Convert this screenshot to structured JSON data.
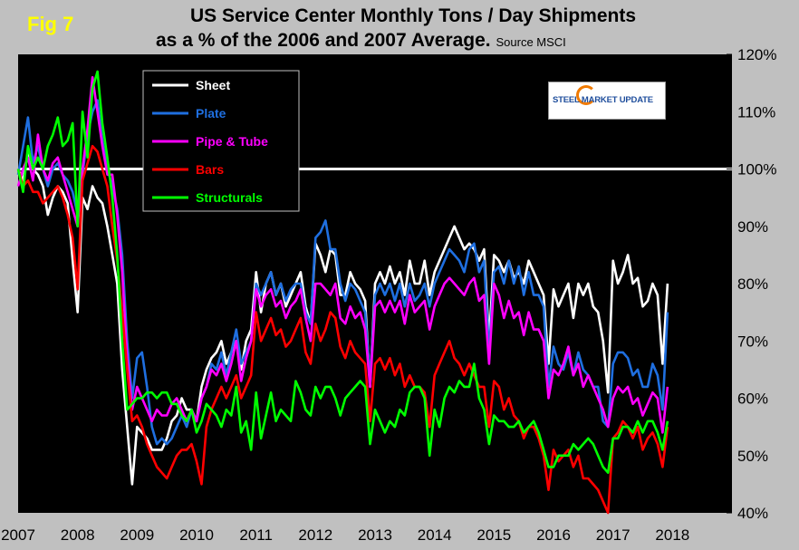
{
  "fig_label": "Fig 7",
  "title_line1": "US Service Center Monthly Tons / Day Shipments",
  "title_line2": "as a % of the 2006 and 2007 Average.",
  "source": "Source MSCI",
  "logo_text": "STEEL MARKET UPDATE",
  "colors": {
    "background": "#c0c0c0",
    "plot_bg": "#000000",
    "axis_text": "#000000",
    "reference_line": "#ffffff"
  },
  "chart_data": {
    "type": "line",
    "title": "US Service Center Monthly Tons / Day Shipments as a % of the 2006 and 2007 Average.",
    "xlabel": "",
    "ylabel": "",
    "x_start": 2007.0,
    "x_step": 0.0833333,
    "xlim": [
      2007,
      2019
    ],
    "ylim": [
      40,
      120
    ],
    "x_ticks": [
      "2007",
      "2008",
      "2009",
      "2010",
      "2011",
      "2012",
      "2013",
      "2014",
      "2015",
      "2016",
      "2017",
      "2018"
    ],
    "y_ticks": [
      "40%",
      "50%",
      "60%",
      "70%",
      "80%",
      "90%",
      "100%",
      "110%",
      "120%"
    ],
    "reference_line": 100,
    "grid": false,
    "legend_position": "top-left",
    "series": [
      {
        "name": "Sheet",
        "color": "#ffffff",
        "values": [
          100,
          98,
          103,
          100,
          99,
          97,
          92,
          95,
          97,
          96,
          94,
          84,
          75,
          95,
          93,
          97,
          95,
          94,
          90,
          85,
          80,
          65,
          55,
          45,
          55,
          54,
          53,
          51,
          51,
          51,
          53,
          56,
          57,
          60,
          58,
          58,
          56,
          62,
          65,
          67,
          68,
          70,
          66,
          68,
          70,
          65,
          70,
          72,
          82,
          75,
          80,
          82,
          78,
          80,
          76,
          78,
          80,
          82,
          76,
          73,
          87,
          85,
          82,
          86,
          85,
          78,
          78,
          82,
          80,
          79,
          77,
          62,
          80,
          82,
          80,
          83,
          80,
          82,
          78,
          84,
          80,
          80,
          84,
          78,
          82,
          84,
          86,
          88,
          90,
          88,
          86,
          87,
          86,
          84,
          86,
          70,
          85,
          84,
          82,
          84,
          81,
          82,
          80,
          84,
          82,
          80,
          78,
          66,
          79,
          76,
          78,
          80,
          74,
          80,
          78,
          80,
          76,
          75,
          70,
          61,
          84,
          80,
          82,
          85,
          80,
          81,
          76,
          77,
          80,
          78,
          66,
          80
        ]
      },
      {
        "name": "Plate",
        "color": "#1f6fe0",
        "values": [
          99,
          104,
          109,
          101,
          104,
          100,
          97,
          100,
          101,
          99,
          98,
          96,
          92,
          99,
          106,
          110,
          112,
          105,
          100,
          97,
          93,
          85,
          70,
          60,
          67,
          68,
          62,
          55,
          52,
          53,
          52,
          53,
          55,
          57,
          55,
          58,
          56,
          60,
          62,
          66,
          65,
          68,
          64,
          68,
          72,
          66,
          68,
          70,
          80,
          78,
          80,
          82,
          78,
          80,
          77,
          79,
          80,
          80,
          75,
          73,
          88,
          89,
          91,
          86,
          86,
          80,
          77,
          80,
          79,
          77,
          75,
          63,
          78,
          80,
          78,
          80,
          77,
          80,
          76,
          80,
          77,
          78,
          80,
          76,
          80,
          82,
          84,
          86,
          85,
          84,
          82,
          86,
          87,
          82,
          84,
          68,
          82,
          83,
          80,
          84,
          80,
          83,
          78,
          82,
          78,
          78,
          76,
          62,
          69,
          66,
          65,
          68,
          64,
          68,
          65,
          64,
          62,
          62,
          56,
          55,
          66,
          68,
          68,
          67,
          64,
          65,
          62,
          62,
          66,
          64,
          58,
          75
        ]
      },
      {
        "name": "Pipe & Tube",
        "color": "#ff00ff",
        "values": [
          97,
          100,
          102,
          98,
          106,
          100,
          98,
          101,
          102,
          99,
          96,
          93,
          90,
          100,
          107,
          116,
          110,
          104,
          99,
          99,
          92,
          82,
          67,
          58,
          62,
          60,
          58,
          56,
          58,
          57,
          57,
          59,
          60,
          58,
          56,
          58,
          56,
          60,
          62,
          65,
          64,
          66,
          63,
          66,
          70,
          63,
          67,
          70,
          79,
          76,
          78,
          79,
          76,
          77,
          74,
          76,
          77,
          79,
          74,
          70,
          80,
          80,
          79,
          78,
          80,
          74,
          73,
          76,
          74,
          75,
          72,
          62,
          76,
          77,
          75,
          77,
          75,
          77,
          73,
          78,
          75,
          76,
          77,
          72,
          76,
          78,
          80,
          81,
          80,
          79,
          78,
          80,
          81,
          77,
          78,
          66,
          80,
          78,
          74,
          77,
          74,
          75,
          71,
          75,
          72,
          72,
          70,
          60,
          65,
          64,
          66,
          69,
          64,
          66,
          62,
          64,
          62,
          60,
          58,
          55,
          60,
          62,
          61,
          62,
          59,
          60,
          57,
          59,
          61,
          60,
          54,
          62
        ]
      },
      {
        "name": "Bars",
        "color": "#ff0000",
        "values": [
          100,
          97,
          98,
          96,
          96,
          94,
          95,
          96,
          97,
          95,
          92,
          88,
          79,
          98,
          101,
          104,
          103,
          100,
          97,
          90,
          84,
          75,
          65,
          56,
          57,
          55,
          52,
          50,
          48,
          47,
          46,
          48,
          50,
          51,
          51,
          52,
          49,
          45,
          55,
          58,
          60,
          62,
          60,
          62,
          64,
          60,
          62,
          64,
          75,
          70,
          72,
          74,
          71,
          72,
          69,
          70,
          72,
          74,
          68,
          66,
          73,
          70,
          72,
          75,
          74,
          69,
          67,
          70,
          68,
          67,
          66,
          56,
          66,
          67,
          65,
          67,
          64,
          66,
          62,
          64,
          62,
          62,
          61,
          55,
          64,
          66,
          68,
          70,
          67,
          66,
          64,
          66,
          64,
          62,
          62,
          55,
          63,
          62,
          58,
          60,
          57,
          56,
          53,
          55,
          55,
          53,
          50,
          44,
          51,
          49,
          50,
          51,
          48,
          50,
          46,
          46,
          45,
          44,
          42,
          40,
          53,
          54,
          56,
          55,
          53,
          55,
          51,
          53,
          54,
          52,
          48,
          55
        ]
      },
      {
        "name": "Structurals",
        "color": "#00ff00",
        "values": [
          100,
          96,
          104,
          100,
          102,
          100,
          104,
          106,
          109,
          104,
          105,
          108,
          90,
          110,
          102,
          114,
          117,
          108,
          102,
          95,
          85,
          70,
          58,
          59,
          60,
          60,
          61,
          61,
          60,
          61,
          61,
          59,
          59,
          57,
          56,
          58,
          54,
          56,
          59,
          58,
          57,
          55,
          58,
          57,
          62,
          54,
          56,
          51,
          61,
          53,
          57,
          61,
          56,
          58,
          57,
          56,
          63,
          61,
          58,
          57,
          62,
          60,
          62,
          62,
          60,
          57,
          60,
          61,
          62,
          63,
          62,
          52,
          58,
          56,
          54,
          56,
          55,
          58,
          57,
          61,
          62,
          62,
          60,
          50,
          58,
          55,
          60,
          62,
          61,
          63,
          62,
          62,
          66,
          60,
          58,
          52,
          57,
          56,
          56,
          55,
          55,
          56,
          54,
          55,
          56,
          54,
          51,
          48,
          48,
          50,
          50,
          50,
          52,
          51,
          52,
          53,
          52,
          50,
          48,
          47,
          53,
          53,
          55,
          55,
          54,
          56,
          54,
          56,
          56,
          54,
          51,
          56
        ]
      }
    ]
  }
}
